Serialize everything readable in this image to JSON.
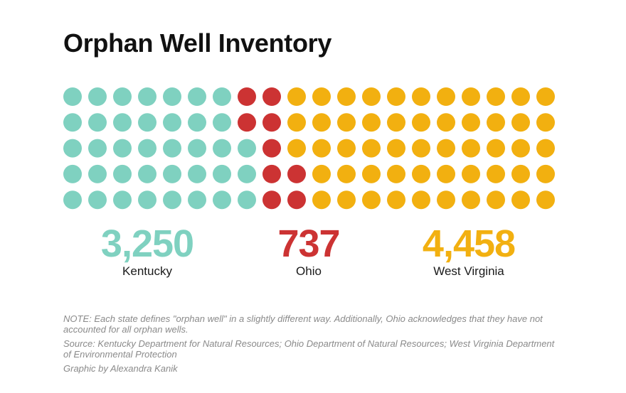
{
  "title": "Orphan Well Inventory",
  "colors": {
    "kentucky": "#7fd1c0",
    "ohio": "#cc3333",
    "west_virginia": "#f2b010"
  },
  "chart_data": {
    "type": "waffle",
    "rows": 5,
    "columns": 20,
    "categories": [
      "Kentucky",
      "Ohio",
      "West Virginia"
    ],
    "values": [
      3250,
      737,
      4458
    ],
    "value_labels": [
      "3,250",
      "737",
      "4,458"
    ],
    "dot_counts": [
      38,
      9,
      53
    ],
    "fill_order": "column-major"
  },
  "stats": [
    {
      "value": "3,250",
      "label": "Kentucky"
    },
    {
      "value": "737",
      "label": "Ohio"
    },
    {
      "value": "4,458",
      "label": "West Virginia"
    }
  ],
  "notes": {
    "note": "NOTE: Each state defines \"orphan well\" in a slightly different way. Additionally, Ohio acknowledges that they have not accounted for all orphan wells.",
    "source": "Source: Kentucky Department for Natural Resources; Ohio Department of Natural Resources; West Virginia Department of Environmental Protection",
    "credit": "Graphic by Alexandra Kanik"
  }
}
